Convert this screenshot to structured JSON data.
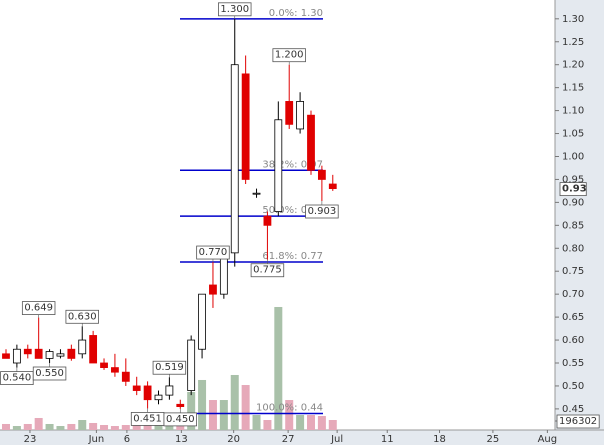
{
  "chart_data": {
    "type": "candlestick",
    "open": [
      0.57,
      0.55,
      0.58,
      0.58,
      0.56,
      0.565,
      0.58,
      0.57,
      0.61,
      0.55,
      0.54,
      0.53,
      0.5,
      0.5,
      0.47,
      0.48,
      0.46,
      0.49,
      0.58,
      0.72,
      0.7,
      0.79,
      1.18,
      0.92,
      0.87,
      0.88,
      1.12,
      1.06,
      1.09,
      0.97,
      0.94
    ],
    "high": [
      0.58,
      0.59,
      0.59,
      0.649,
      0.58,
      0.58,
      0.59,
      0.63,
      0.62,
      0.56,
      0.57,
      0.56,
      0.52,
      0.51,
      0.49,
      0.519,
      0.47,
      0.61,
      0.7,
      0.77,
      0.8,
      1.3,
      1.22,
      0.93,
      0.88,
      1.12,
      1.2,
      1.14,
      1.1,
      0.98,
      0.96
    ],
    "low": [
      0.56,
      0.54,
      0.56,
      0.56,
      0.55,
      0.56,
      0.555,
      0.56,
      0.55,
      0.535,
      0.52,
      0.5,
      0.48,
      0.451,
      0.46,
      0.47,
      0.45,
      0.48,
      0.56,
      0.67,
      0.69,
      0.76,
      0.94,
      0.91,
      0.775,
      0.87,
      1.06,
      1.05,
      0.96,
      0.903,
      0.925
    ],
    "close": [
      0.56,
      0.58,
      0.57,
      0.56,
      0.575,
      0.57,
      0.56,
      0.6,
      0.55,
      0.54,
      0.53,
      0.51,
      0.49,
      0.47,
      0.48,
      0.5,
      0.455,
      0.6,
      0.7,
      0.7,
      0.8,
      1.2,
      0.95,
      0.92,
      0.85,
      1.08,
      1.07,
      1.12,
      0.97,
      0.95,
      0.93
    ],
    "volume": [
      131000,
      87000,
      131000,
      262000,
      131000,
      87000,
      131000,
      218000,
      153000,
      109000,
      87000,
      109000,
      131000,
      218000,
      175000,
      131000,
      305000,
      829000,
      1091000,
      654000,
      654000,
      1200000,
      981000,
      327000,
      218000,
      2683000,
      654000,
      327000,
      327000,
      305000,
      218000
    ],
    "up_color": "#ffffff",
    "down_color": "#e00000",
    "up_volume_color": "#a9c1a9",
    "down_volume_color": "#e6a9b9",
    "xlim": [
      -0.55,
      50.4
    ],
    "xticks": [
      {
        "value": 2.2,
        "label": "23"
      },
      {
        "value": 8.3,
        "label": "Jun"
      },
      {
        "value": 11.1,
        "label": "6"
      },
      {
        "value": 16.1,
        "label": "13"
      },
      {
        "value": 20.9,
        "label": "20"
      },
      {
        "value": 25.9,
        "label": "27"
      },
      {
        "value": 30.4,
        "label": "Jul"
      },
      {
        "value": 35,
        "label": "11"
      },
      {
        "value": 39.8,
        "label": "18"
      },
      {
        "value": 44.7,
        "label": "25"
      },
      {
        "value": 49.7,
        "label": "Aug"
      }
    ],
    "ylim": [
      0.404,
      1.341
    ],
    "yticks": [
      {
        "value": 1.3,
        "label": "1.30"
      },
      {
        "value": 1.25,
        "label": "1.25"
      },
      {
        "value": 1.2,
        "label": "1.20"
      },
      {
        "value": 1.15,
        "label": "1.15"
      },
      {
        "value": 1.1,
        "label": "1.10"
      },
      {
        "value": 1.05,
        "label": "1.05"
      },
      {
        "value": 1.0,
        "label": "1.00"
      },
      {
        "value": 0.95,
        "label": "0.95"
      },
      {
        "value": 0.9,
        "label": "0.90"
      },
      {
        "value": 0.85,
        "label": "0.85"
      },
      {
        "value": 0.8,
        "label": "0.80"
      },
      {
        "value": 0.75,
        "label": "0.75"
      },
      {
        "value": 0.7,
        "label": "0.70"
      },
      {
        "value": 0.65,
        "label": "0.65"
      },
      {
        "value": 0.6,
        "label": "0.60"
      },
      {
        "value": 0.55,
        "label": "0.55"
      },
      {
        "value": 0.5,
        "label": "0.50"
      },
      {
        "value": 0.45,
        "label": "0.45"
      }
    ],
    "volume_lim": [
      0,
      9379000
    ],
    "volume_ticks": [
      196302
    ],
    "fib_color": "#0000cc",
    "fib_levels": [
      {
        "value": 1.3,
        "label": "0.0%: 1.30"
      },
      {
        "value": 0.97,
        "label": "38.2%: 0.97"
      },
      {
        "value": 0.87,
        "label": "50.0%: 0.87"
      },
      {
        "value": 0.77,
        "label": "61.8%: 0.77"
      },
      {
        "value": 0.44,
        "label": "100.0%: 0.44"
      }
    ],
    "annotations": [
      {
        "value": 1.3,
        "label": "1.300"
      },
      {
        "value": 1.2,
        "label": "1.200"
      },
      {
        "value": 0.77,
        "label": "0.770"
      },
      {
        "value": 0.775,
        "label": "0.775"
      },
      {
        "value": 0.903,
        "label": "0.903"
      },
      {
        "value": 0.649,
        "label": "0.649"
      },
      {
        "value": 0.63,
        "label": "0.630"
      },
      {
        "value": 0.54,
        "label": "0.540"
      },
      {
        "value": 0.55,
        "label": "0.550"
      },
      {
        "value": 0.519,
        "label": "0.519"
      },
      {
        "value": 0.451,
        "label": "0.451"
      },
      {
        "value": 0.45,
        "label": "0.450"
      }
    ]
  }
}
